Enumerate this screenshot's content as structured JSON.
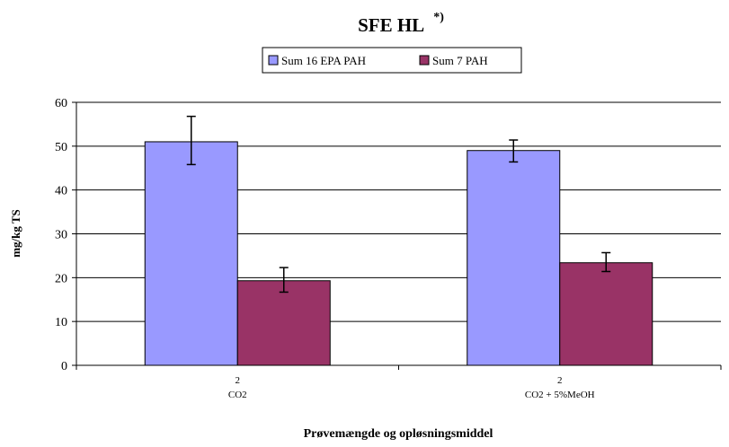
{
  "chart_data": {
    "type": "bar",
    "title": "SFE HL",
    "title_superscript": "*)",
    "xlabel": "Prøvemængde og opløsningsmiddel",
    "ylabel": "mg/kg TS",
    "ylim": [
      0,
      60
    ],
    "yticks": [
      0,
      10,
      20,
      30,
      40,
      50,
      60
    ],
    "grid": true,
    "legend_position": "top-center",
    "categories": [
      {
        "line1": "2",
        "line2": "CO2"
      },
      {
        "line1": "2",
        "line2": "CO2 + 5%MeOH"
      }
    ],
    "series": [
      {
        "name": "Sum 16 EPA PAH",
        "color": "#9999ff",
        "values": [
          51,
          49
        ],
        "error_low": [
          45.8,
          46.4
        ],
        "error_high": [
          56.8,
          51.4
        ]
      },
      {
        "name": "Sum 7 PAH",
        "color": "#993366",
        "values": [
          19.3,
          23.4
        ],
        "error_low": [
          16.7,
          21.4
        ],
        "error_high": [
          22.3,
          25.7
        ]
      }
    ]
  }
}
